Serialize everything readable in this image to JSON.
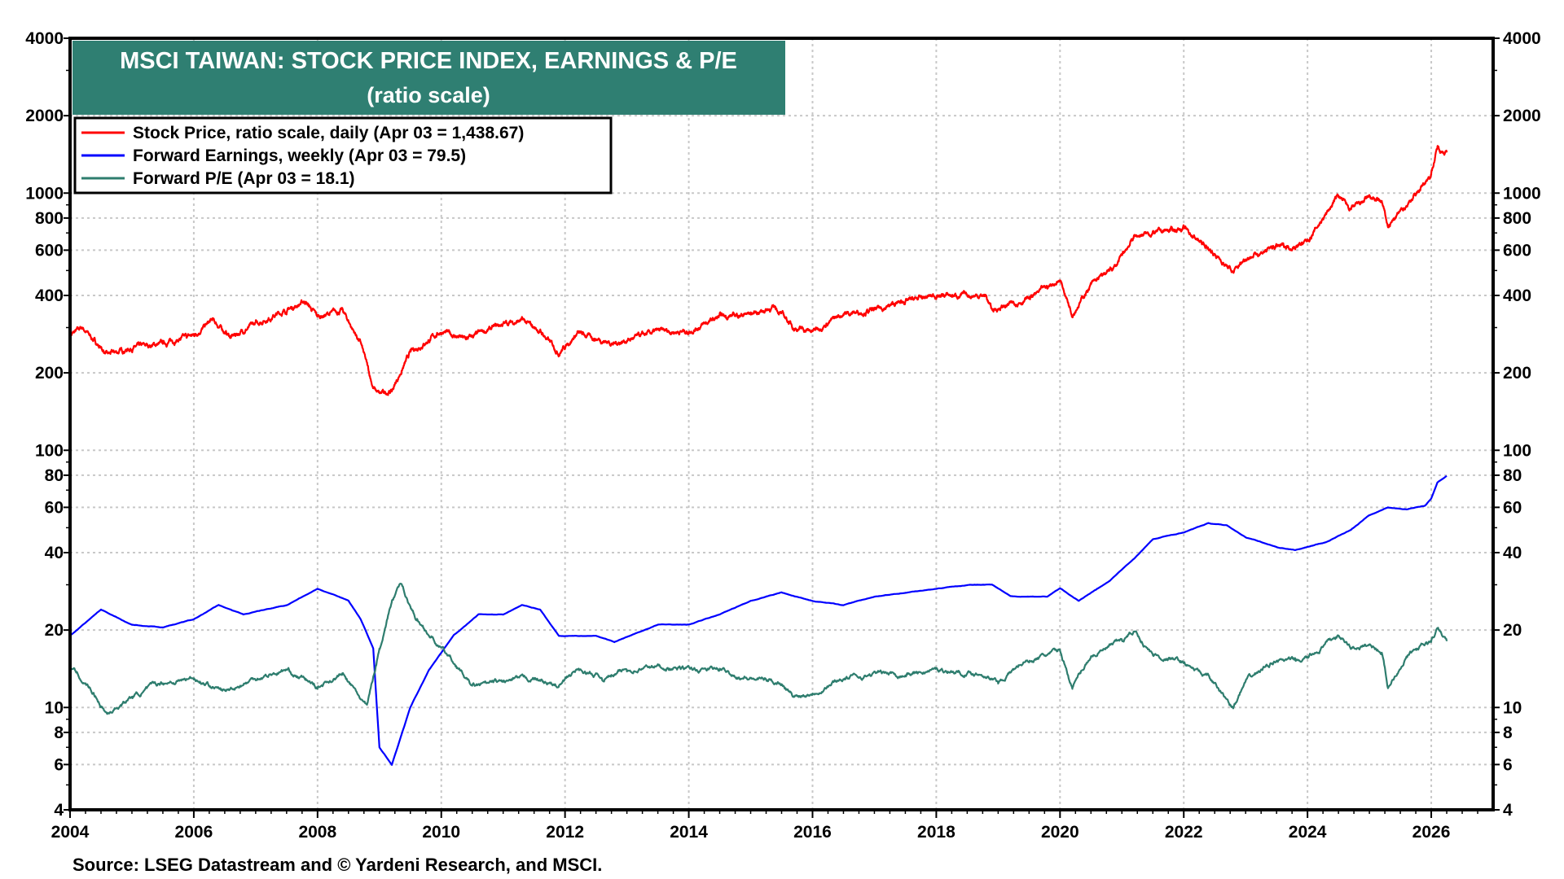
{
  "chart_data": {
    "type": "line",
    "title": "MSCI TAIWAN: STOCK PRICE INDEX, EARNINGS & P/E",
    "subtitle": "(ratio scale)",
    "source": "Source: LSEG Datastream and © Yardeni Research, and MSCI.",
    "y_scale": "log",
    "ylim": [
      4,
      4000
    ],
    "xlim": [
      2004,
      2027
    ],
    "grid": true,
    "legend_placement": "top-left",
    "x_ticks": [
      "2004",
      "2006",
      "2008",
      "2010",
      "2012",
      "2014",
      "2016",
      "2018",
      "2020",
      "2022",
      "2024",
      "2026"
    ],
    "y_ticks": [
      "4000",
      "2000",
      "1000",
      "800",
      "600",
      "400",
      "200",
      "100",
      "80",
      "60",
      "40",
      "20",
      "10",
      "8",
      "6",
      "4"
    ],
    "colors": {
      "title_bg": "#2f7f72",
      "stock": "#ff0000",
      "earnings": "#0000ff",
      "pe": "#2e7d6e"
    },
    "series": [
      {
        "name": "Stock Price, ratio scale, daily (Apr 03 = 1,438.67)",
        "key": "stock",
        "x": [
          2004.0,
          2004.2,
          2004.6,
          2005.0,
          2005.5,
          2006.0,
          2006.3,
          2006.6,
          2007.0,
          2007.5,
          2007.8,
          2008.0,
          2008.4,
          2008.7,
          2008.9,
          2009.0,
          2009.2,
          2009.5,
          2010.0,
          2010.4,
          2011.0,
          2011.3,
          2011.6,
          2011.9,
          2012.2,
          2012.8,
          2013.5,
          2014.0,
          2014.5,
          2015.0,
          2015.4,
          2015.7,
          2016.0,
          2016.5,
          2017.0,
          2017.5,
          2018.0,
          2018.8,
          2018.9,
          2019.5,
          2020.0,
          2020.2,
          2020.5,
          2020.9,
          2021.2,
          2021.5,
          2022.0,
          2022.5,
          2022.8,
          2023.0,
          2023.5,
          2023.8,
          2024.0,
          2024.5,
          2024.7,
          2025.0,
          2025.2,
          2025.3,
          2025.6,
          2025.9,
          2026.0,
          2026.1,
          2026.25
        ],
        "y": [
          280,
          300,
          235,
          250,
          260,
          280,
          320,
          275,
          310,
          350,
          380,
          330,
          350,
          260,
          175,
          165,
          170,
          240,
          290,
          270,
          310,
          320,
          290,
          240,
          285,
          260,
          290,
          290,
          330,
          340,
          360,
          300,
          290,
          340,
          350,
          380,
          400,
          400,
          350,
          390,
          460,
          340,
          440,
          520,
          680,
          700,
          730,
          580,
          490,
          560,
          620,
          620,
          650,
          980,
          860,
          960,
          920,
          740,
          900,
          1100,
          1200,
          1500,
          1440
        ]
      },
      {
        "name": "Forward Earnings, weekly (Apr 03 = 79.5)",
        "key": "earnings",
        "x": [
          2004.0,
          2004.5,
          2005.0,
          2005.5,
          2006.0,
          2006.4,
          2006.8,
          2007.5,
          2008.0,
          2008.5,
          2008.7,
          2008.9,
          2009.0,
          2009.2,
          2009.5,
          2009.8,
          2010.2,
          2010.6,
          2011.0,
          2011.3,
          2011.6,
          2011.9,
          2012.5,
          2012.8,
          2013.5,
          2014.0,
          2014.5,
          2015.0,
          2015.5,
          2016.0,
          2016.5,
          2017.0,
          2017.5,
          2018.0,
          2018.5,
          2018.9,
          2019.2,
          2019.8,
          2020.0,
          2020.3,
          2020.8,
          2021.2,
          2021.5,
          2022.0,
          2022.4,
          2022.7,
          2023.0,
          2023.5,
          2023.8,
          2024.3,
          2024.7,
          2025.0,
          2025.3,
          2025.6,
          2025.9,
          2026.0,
          2026.1,
          2026.25
        ],
        "y": [
          19,
          24,
          21,
          20.5,
          22,
          25,
          23,
          25,
          29,
          26,
          22,
          17,
          7,
          6,
          10,
          14,
          19,
          23,
          23,
          25,
          24,
          19,
          19,
          18,
          21,
          21,
          23,
          26,
          28,
          26,
          25,
          27,
          28,
          29,
          30,
          30,
          27,
          27,
          29,
          26,
          31,
          38,
          45,
          48,
          52,
          51,
          46,
          42,
          41,
          44,
          49,
          56,
          60,
          59,
          61,
          65,
          75,
          79.5
        ]
      },
      {
        "name": "Forward P/E (Apr 03 = 18.1)",
        "key": "pe",
        "x": [
          2004.0,
          2004.3,
          2004.6,
          2005.0,
          2005.5,
          2006.0,
          2006.5,
          2007.0,
          2007.5,
          2008.0,
          2008.4,
          2008.8,
          2009.0,
          2009.2,
          2009.35,
          2009.6,
          2010.0,
          2010.3,
          2010.5,
          2011.0,
          2011.5,
          2011.9,
          2012.2,
          2012.6,
          2013.0,
          2013.5,
          2014.0,
          2014.5,
          2015.0,
          2015.5,
          2015.7,
          2016.0,
          2016.5,
          2017.0,
          2017.5,
          2018.0,
          2018.8,
          2019.0,
          2019.4,
          2019.8,
          2020.0,
          2020.2,
          2020.5,
          2021.0,
          2021.2,
          2021.5,
          2022.0,
          2022.4,
          2022.8,
          2023.0,
          2023.5,
          2023.8,
          2024.0,
          2024.5,
          2024.7,
          2025.0,
          2025.2,
          2025.3,
          2025.6,
          2026.0,
          2026.1,
          2026.25
        ],
        "y": [
          14.5,
          12,
          9.5,
          11,
          12.5,
          13,
          11.5,
          13,
          14,
          12,
          13.5,
          10,
          17,
          26,
          30,
          22,
          17,
          14,
          12,
          12.5,
          13,
          12,
          14,
          13,
          14,
          14.5,
          14,
          14,
          13,
          12.5,
          11,
          11.5,
          13,
          13.5,
          13.5,
          14,
          13.5,
          12.5,
          15,
          16,
          16.5,
          12,
          16,
          18,
          20,
          16,
          15,
          13,
          10,
          12.5,
          15.5,
          15,
          15.5,
          19,
          17,
          17.5,
          16.5,
          12,
          16,
          18,
          20,
          18.1
        ]
      }
    ]
  }
}
